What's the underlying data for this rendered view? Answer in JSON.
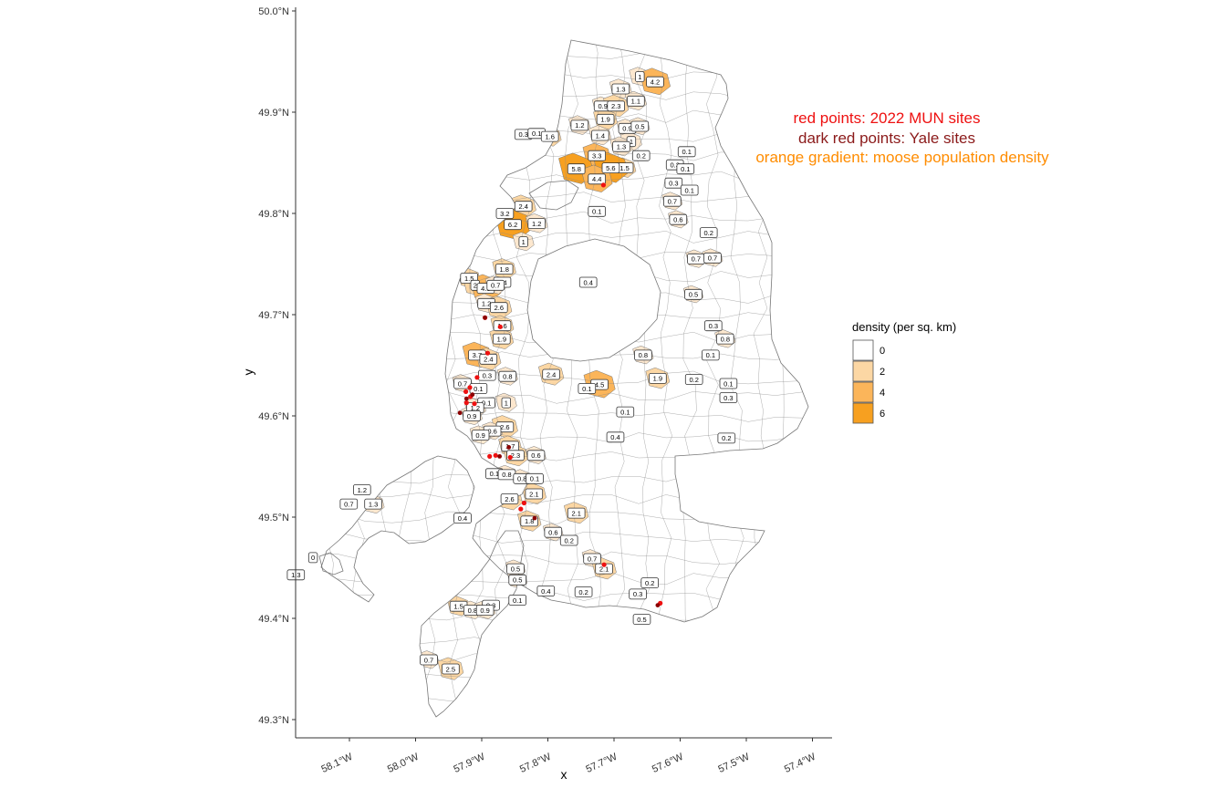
{
  "colors": {
    "region_outline": "#777777",
    "fill_0": "#ffffff",
    "fill_1": "#fde8cf",
    "fill_2": "#fcd7a4",
    "fill_4": "#fbb55a",
    "fill_6": "#f7a020",
    "mun_sites": "#ee1111",
    "yale_sites": "#8b0000",
    "annotation_red": "#ee1111",
    "annotation_darkred": "#8b1a1a",
    "annotation_orange": "#ff8c00"
  },
  "chart_data": {
    "type": "map",
    "xlabel": "x",
    "ylabel": "y",
    "x_ticks": [
      "58.1°W",
      "58.0°W",
      "57.9°W",
      "57.8°W",
      "57.7°W",
      "57.6°W",
      "57.5°W",
      "57.4°W"
    ],
    "y_ticks": [
      "50.0°N",
      "49.9°N",
      "49.8°N",
      "49.7°N",
      "49.6°N",
      "49.5°N",
      "49.4°N",
      "49.3°N"
    ],
    "xlim": [
      -58.19,
      -57.38
    ],
    "ylim": [
      49.28,
      50.01
    ],
    "annotations": [
      {
        "text": "red points: 2022 MUN sites",
        "color": "#ee1111"
      },
      {
        "text": "dark red points: Yale sites",
        "color": "#8b1a1a"
      },
      {
        "text": "orange gradient: moose population density",
        "color": "#ff8c00"
      }
    ],
    "legend": {
      "title": "density (per sq. km)",
      "position": "right",
      "entries": [
        "0",
        "2",
        "4",
        "6"
      ]
    },
    "density_labels": [
      {
        "v": "1",
        "lon": -57.661,
        "lat": 49.935
      },
      {
        "v": "4.2",
        "lon": -57.638,
        "lat": 49.93
      },
      {
        "v": "1.3",
        "lon": -57.69,
        "lat": 49.923
      },
      {
        "v": "1.1",
        "lon": -57.667,
        "lat": 49.911
      },
      {
        "v": "0.9",
        "lon": -57.717,
        "lat": 49.906
      },
      {
        "v": "2.3",
        "lon": -57.697,
        "lat": 49.906
      },
      {
        "v": "1.9",
        "lon": -57.713,
        "lat": 49.893
      },
      {
        "v": "0.9",
        "lon": -57.68,
        "lat": 49.884
      },
      {
        "v": "0.5",
        "lon": -57.661,
        "lat": 49.886
      },
      {
        "v": "1.2",
        "lon": -57.752,
        "lat": 49.887
      },
      {
        "v": "1.4",
        "lon": -57.721,
        "lat": 49.877
      },
      {
        "v": "0.3",
        "lon": -57.837,
        "lat": 49.878
      },
      {
        "v": "0.1",
        "lon": -57.817,
        "lat": 49.879
      },
      {
        "v": "1.6",
        "lon": -57.797,
        "lat": 49.876
      },
      {
        "v": "1",
        "lon": -57.674,
        "lat": 49.871
      },
      {
        "v": "1.3",
        "lon": -57.689,
        "lat": 49.866
      },
      {
        "v": "3.3",
        "lon": -57.726,
        "lat": 49.857
      },
      {
        "v": "0.2",
        "lon": -57.659,
        "lat": 49.857
      },
      {
        "v": "0.1",
        "lon": -57.59,
        "lat": 49.861
      },
      {
        "v": "0.3",
        "lon": -57.608,
        "lat": 49.848
      },
      {
        "v": "1.5",
        "lon": -57.684,
        "lat": 49.845
      },
      {
        "v": "5.8",
        "lon": -57.757,
        "lat": 49.844
      },
      {
        "v": "5.6",
        "lon": -57.705,
        "lat": 49.845
      },
      {
        "v": "0.1",
        "lon": -57.592,
        "lat": 49.844
      },
      {
        "v": "4.4",
        "lon": -57.726,
        "lat": 49.834
      },
      {
        "v": "0.3",
        "lon": -57.61,
        "lat": 49.83
      },
      {
        "v": "0.1",
        "lon": -57.586,
        "lat": 49.823
      },
      {
        "v": "0.7",
        "lon": -57.612,
        "lat": 49.812
      },
      {
        "v": "2.4",
        "lon": -57.837,
        "lat": 49.807
      },
      {
        "v": "3.2",
        "lon": -57.865,
        "lat": 49.8
      },
      {
        "v": "0.1",
        "lon": -57.726,
        "lat": 49.802
      },
      {
        "v": "0.6",
        "lon": -57.603,
        "lat": 49.794
      },
      {
        "v": "6.2",
        "lon": -57.853,
        "lat": 49.789
      },
      {
        "v": "1.2",
        "lon": -57.817,
        "lat": 49.79
      },
      {
        "v": "0.2",
        "lon": -57.557,
        "lat": 49.781
      },
      {
        "v": "1",
        "lon": -57.837,
        "lat": 49.772
      },
      {
        "v": "0.7",
        "lon": -57.576,
        "lat": 49.755
      },
      {
        "v": "0.7",
        "lon": -57.551,
        "lat": 49.756
      },
      {
        "v": "1.8",
        "lon": -57.866,
        "lat": 49.745
      },
      {
        "v": "1.5",
        "lon": -57.919,
        "lat": 49.736
      },
      {
        "v": "0.4",
        "lon": -57.869,
        "lat": 49.732
      },
      {
        "v": "0.4",
        "lon": -57.739,
        "lat": 49.732
      },
      {
        "v": "2",
        "lon": -57.91,
        "lat": 49.729
      },
      {
        "v": "4.3",
        "lon": -57.894,
        "lat": 49.726
      },
      {
        "v": "0.7",
        "lon": -57.879,
        "lat": 49.729
      },
      {
        "v": "0.5",
        "lon": -57.58,
        "lat": 49.72
      },
      {
        "v": "1.2",
        "lon": -57.893,
        "lat": 49.711
      },
      {
        "v": "2.6",
        "lon": -57.874,
        "lat": 49.707
      },
      {
        "v": "1.6",
        "lon": -57.869,
        "lat": 49.689
      },
      {
        "v": "0.3",
        "lon": -57.55,
        "lat": 49.689
      },
      {
        "v": "1.9",
        "lon": -57.87,
        "lat": 49.676
      },
      {
        "v": "0.8",
        "lon": -57.532,
        "lat": 49.676
      },
      {
        "v": "3.7",
        "lon": -57.907,
        "lat": 49.66
      },
      {
        "v": "0.8",
        "lon": -57.656,
        "lat": 49.66
      },
      {
        "v": "2.4",
        "lon": -57.89,
        "lat": 49.656
      },
      {
        "v": "0.1",
        "lon": -57.554,
        "lat": 49.66
      },
      {
        "v": "0.3",
        "lon": -57.892,
        "lat": 49.64
      },
      {
        "v": "2.4",
        "lon": -57.795,
        "lat": 49.641
      },
      {
        "v": "0.8",
        "lon": -57.861,
        "lat": 49.639
      },
      {
        "v": "1.9",
        "lon": -57.634,
        "lat": 49.637
      },
      {
        "v": "0.2",
        "lon": -57.579,
        "lat": 49.636
      },
      {
        "v": "0.7",
        "lon": -57.929,
        "lat": 49.632
      },
      {
        "v": "4.5",
        "lon": -57.722,
        "lat": 49.631
      },
      {
        "v": "0.1",
        "lon": -57.527,
        "lat": 49.632
      },
      {
        "v": "0.1",
        "lon": -57.741,
        "lat": 49.627
      },
      {
        "v": "0.1",
        "lon": -57.905,
        "lat": 49.627
      },
      {
        "v": "0.3",
        "lon": -57.527,
        "lat": 49.618
      },
      {
        "v": "1",
        "lon": -57.863,
        "lat": 49.613
      },
      {
        "v": "0.1",
        "lon": -57.893,
        "lat": 49.613
      },
      {
        "v": "1.2",
        "lon": -57.91,
        "lat": 49.608
      },
      {
        "v": "0.1",
        "lon": -57.683,
        "lat": 49.604
      },
      {
        "v": "0.9",
        "lon": -57.915,
        "lat": 49.6
      },
      {
        "v": "2.6",
        "lon": -57.865,
        "lat": 49.589
      },
      {
        "v": "0.6",
        "lon": -57.884,
        "lat": 49.585
      },
      {
        "v": "0.9",
        "lon": -57.902,
        "lat": 49.581
      },
      {
        "v": "0.4",
        "lon": -57.698,
        "lat": 49.579
      },
      {
        "v": "0.2",
        "lon": -57.53,
        "lat": 49.578
      },
      {
        "v": "1.7",
        "lon": -57.857,
        "lat": 49.57
      },
      {
        "v": "2.3",
        "lon": -57.849,
        "lat": 49.561
      },
      {
        "v": "0.6",
        "lon": -57.818,
        "lat": 49.561
      },
      {
        "v": "0.1",
        "lon": -57.881,
        "lat": 49.543
      },
      {
        "v": "0.8",
        "lon": -57.862,
        "lat": 49.542
      },
      {
        "v": "0.8",
        "lon": -57.839,
        "lat": 49.538
      },
      {
        "v": "0.1",
        "lon": -57.82,
        "lat": 49.538
      },
      {
        "v": "1.2",
        "lon": -58.081,
        "lat": 49.527
      },
      {
        "v": "2.1",
        "lon": -57.821,
        "lat": 49.523
      },
      {
        "v": "0.7",
        "lon": -58.101,
        "lat": 49.513
      },
      {
        "v": "1.3",
        "lon": -58.064,
        "lat": 49.513
      },
      {
        "v": "2.6",
        "lon": -57.858,
        "lat": 49.518
      },
      {
        "v": "2.1",
        "lon": -57.757,
        "lat": 49.504
      },
      {
        "v": "0.4",
        "lon": -57.929,
        "lat": 49.499
      },
      {
        "v": "1.8",
        "lon": -57.828,
        "lat": 49.496
      },
      {
        "v": "0.6",
        "lon": -57.792,
        "lat": 49.485
      },
      {
        "v": "0.2",
        "lon": -57.768,
        "lat": 49.477
      },
      {
        "v": "0",
        "lon": -58.155,
        "lat": 49.46
      },
      {
        "v": "0.7",
        "lon": -57.733,
        "lat": 49.459
      },
      {
        "v": "2.1",
        "lon": -57.715,
        "lat": 49.449
      },
      {
        "v": "0.5",
        "lon": -57.849,
        "lat": 49.449
      },
      {
        "v": "1.3",
        "lon": -58.181,
        "lat": 49.443
      },
      {
        "v": "0.5",
        "lon": -57.846,
        "lat": 49.438
      },
      {
        "v": "0.2",
        "lon": -57.646,
        "lat": 49.435
      },
      {
        "v": "0.4",
        "lon": -57.803,
        "lat": 49.427
      },
      {
        "v": "0.2",
        "lon": -57.746,
        "lat": 49.426
      },
      {
        "v": "0.3",
        "lon": -57.664,
        "lat": 49.424
      },
      {
        "v": "0.1",
        "lon": -57.846,
        "lat": 49.418
      },
      {
        "v": "1.5",
        "lon": -57.935,
        "lat": 49.412
      },
      {
        "v": "0.3",
        "lon": -57.886,
        "lat": 49.413
      },
      {
        "v": "0.8",
        "lon": -57.914,
        "lat": 49.408
      },
      {
        "v": "0.9",
        "lon": -57.895,
        "lat": 49.408
      },
      {
        "v": "0.5",
        "lon": -57.658,
        "lat": 49.399
      },
      {
        "v": "0.7",
        "lon": -57.98,
        "lat": 49.359
      },
      {
        "v": "2.5",
        "lon": -57.947,
        "lat": 49.35
      }
    ],
    "mun_sites": [
      {
        "lon": -57.716,
        "lat": 49.828
      },
      {
        "lon": -57.872,
        "lat": 49.688
      },
      {
        "lon": -57.895,
        "lat": 49.697
      },
      {
        "lon": -57.891,
        "lat": 49.662
      },
      {
        "lon": -57.907,
        "lat": 49.638
      },
      {
        "lon": -57.918,
        "lat": 49.628
      },
      {
        "lon": -57.924,
        "lat": 49.624
      },
      {
        "lon": -57.917,
        "lat": 49.619
      },
      {
        "lon": -57.923,
        "lat": 49.613
      },
      {
        "lon": -57.911,
        "lat": 49.612
      },
      {
        "lon": -57.888,
        "lat": 49.56
      },
      {
        "lon": -57.879,
        "lat": 49.561
      },
      {
        "lon": -57.857,
        "lat": 49.559
      },
      {
        "lon": -57.836,
        "lat": 49.514
      },
      {
        "lon": -57.841,
        "lat": 49.508
      },
      {
        "lon": -57.715,
        "lat": 49.453
      },
      {
        "lon": -57.63,
        "lat": 49.415
      }
    ],
    "yale_sites": [
      {
        "lon": -57.895,
        "lat": 49.697
      },
      {
        "lon": -57.923,
        "lat": 49.617
      },
      {
        "lon": -57.914,
        "lat": 49.621
      },
      {
        "lon": -57.933,
        "lat": 49.603
      },
      {
        "lon": -57.859,
        "lat": 49.569
      },
      {
        "lon": -57.873,
        "lat": 49.56
      },
      {
        "lon": -57.82,
        "lat": 49.499
      },
      {
        "lon": -57.634,
        "lat": 49.413
      }
    ]
  }
}
